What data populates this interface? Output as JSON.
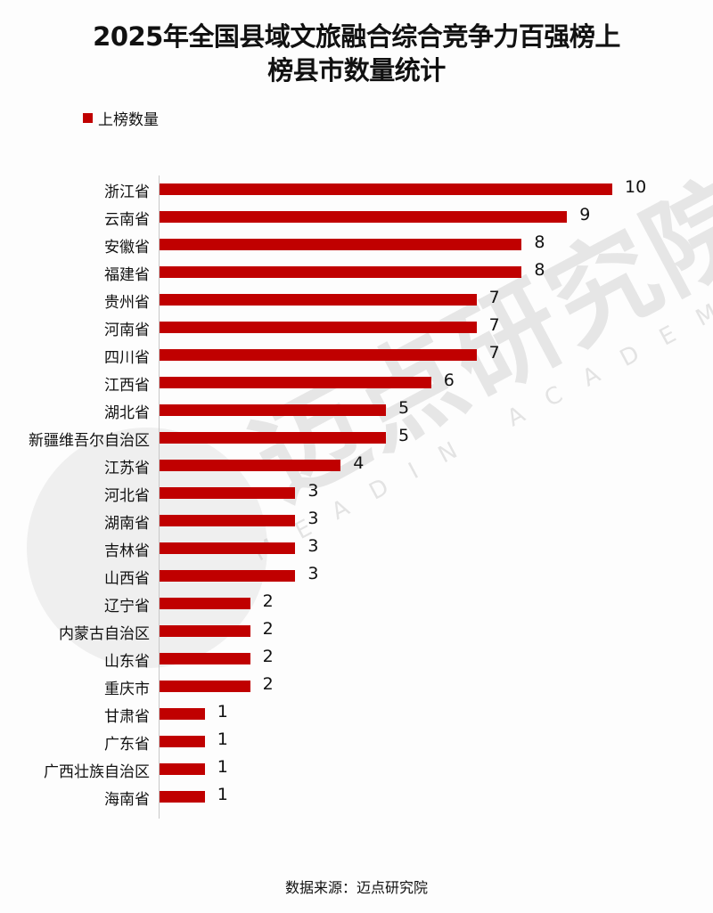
{
  "title_line1": "2025年全国县域文旅融合综合竞争力百强榜上",
  "title_line2": "榜县市数量统计",
  "legend": {
    "label": "上榜数量",
    "color": "#C00000"
  },
  "source": "数据来源：迈点研究院",
  "watermark": {
    "text": "迈点研究院",
    "subtext": "MEADIN ACADEMY"
  },
  "chart_data": {
    "type": "bar",
    "orientation": "horizontal",
    "title": "2025年全国县域文旅融合综合竞争力百强榜上榜县市数量统计",
    "xlabel": "",
    "ylabel": "",
    "legend": [
      "上榜数量"
    ],
    "legend_position": "top-left",
    "grid": false,
    "data_labels": true,
    "bar_color": "#C00000",
    "xlim": [
      0,
      10
    ],
    "categories": [
      "浙江省",
      "云南省",
      "安徽省",
      "福建省",
      "贵州省",
      "河南省",
      "四川省",
      "江西省",
      "湖北省",
      "新疆维吾尔自治区",
      "江苏省",
      "河北省",
      "湖南省",
      "吉林省",
      "山西省",
      "辽宁省",
      "内蒙古自治区",
      "山东省",
      "重庆市",
      "甘肃省",
      "广东省",
      "广西壮族自治区",
      "海南省"
    ],
    "series": [
      {
        "name": "上榜数量",
        "values": [
          10,
          9,
          8,
          8,
          7,
          7,
          7,
          6,
          5,
          5,
          4,
          3,
          3,
          3,
          3,
          2,
          2,
          2,
          2,
          1,
          1,
          1,
          1
        ]
      }
    ]
  }
}
